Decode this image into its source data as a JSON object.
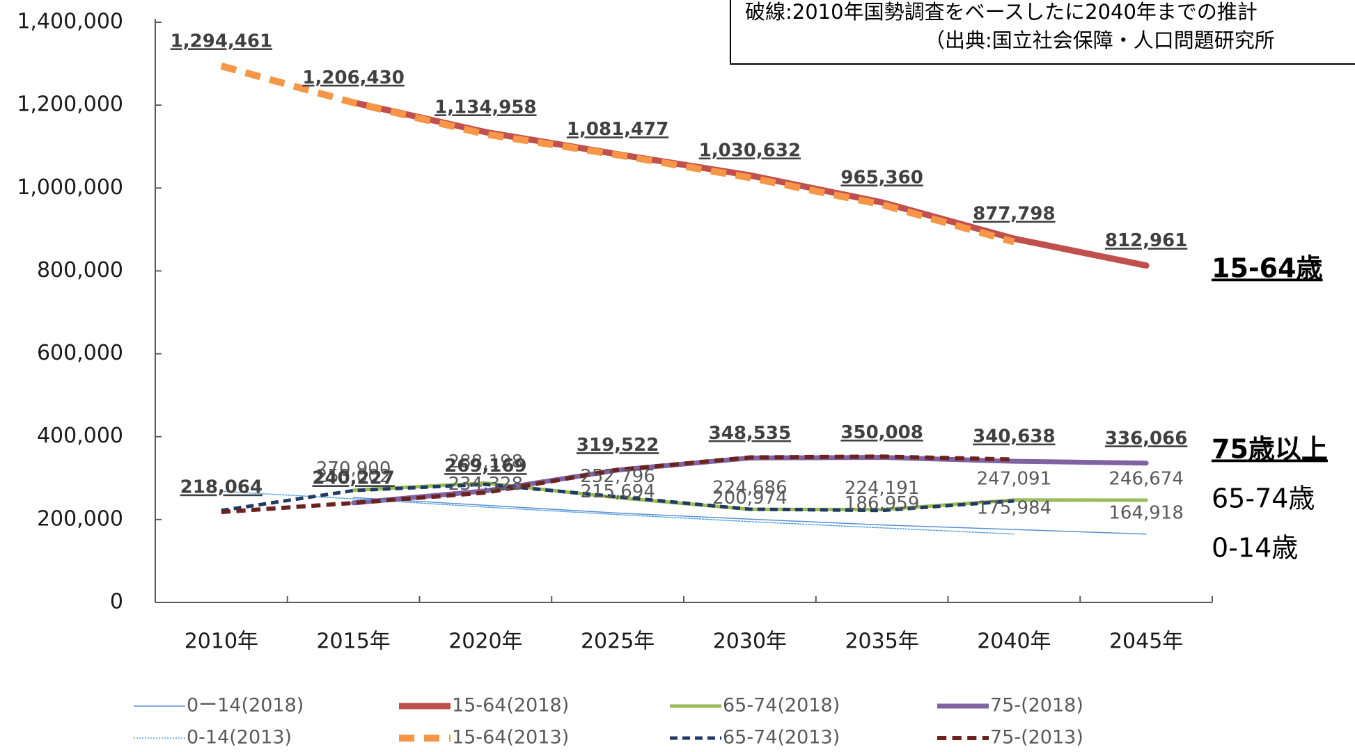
{
  "chart_data": {
    "type": "line",
    "annotation": [
      "破線:2010年国勢調査をベースしたに2040年までの推計",
      "（出典:国立社会保障・人口問題研究所"
    ],
    "side_labels": [
      "15-64歳",
      "75歳以上",
      "65-74歳",
      "0-14歳"
    ],
    "categories": [
      "2010年",
      "2015年",
      "2020年",
      "2025年",
      "2030年",
      "2035年",
      "2040年",
      "2045年"
    ],
    "ylim": [
      0,
      1400000
    ],
    "yticks": [
      0,
      {
        "value": 200000,
        "label": "200,000"
      },
      {
        "value": 400000,
        "label": "400,000"
      },
      {
        "value": 600000,
        "label": "600,000"
      },
      {
        "value": 800000,
        "label": "800,000"
      },
      {
        "value": 1000000,
        "label": "1,000,000"
      },
      {
        "value": 1200000,
        "label": "1,200,000"
      },
      {
        "value": 1400000,
        "label": "1,400,000"
      }
    ],
    "series": [
      {
        "name": "0ー14(2018)",
        "color": "#5b8fd0",
        "dash": "solid",
        "width": 1.5,
        "values": [
          null,
          253002,
          234328,
          215694,
          200974,
          186959,
          175984,
          164918
        ],
        "value_labels": [
          null,
          "253,002",
          "234,328",
          "215,694",
          "200,974",
          "186,959",
          "175,984",
          "164,918"
        ],
        "label_bold": false
      },
      {
        "name": "15-64(2018)",
        "color": "#c0504d",
        "dash": "solid",
        "width": 9,
        "values": [
          null,
          1206430,
          1134958,
          1081477,
          1030632,
          965360,
          877798,
          812961
        ],
        "value_labels": [
          null,
          "1,206,430",
          "1,134,958",
          "1,081,477",
          "1,030,632",
          "965,360",
          "877,798",
          "812,961"
        ],
        "label_bold": true
      },
      {
        "name": "65-74(2018)",
        "color": "#9bbb59",
        "dash": "solid",
        "width": 5,
        "values": [
          null,
          270900,
          288198,
          252796,
          224686,
          224191,
          247091,
          246674
        ],
        "value_labels": [
          null,
          "270,900",
          "288,198",
          "252,796",
          "224,686",
          "224,191",
          "247,091",
          "246,674"
        ],
        "label_bold": false
      },
      {
        "name": "75-(2018)",
        "color": "#8064a2",
        "dash": "solid",
        "width": 7,
        "values": [
          null,
          240227,
          269169,
          319522,
          348535,
          350008,
          340638,
          336066
        ],
        "value_labels": [
          null,
          "240,227",
          "269,169",
          "319,522",
          "348,535",
          "350,008",
          "340,638",
          "336,066"
        ],
        "label_bold": true
      },
      {
        "name": "0-14(2013)",
        "color": "#4f9fd8",
        "dash": "dotted",
        "width": 1.5,
        "values": [
          268000,
          250000,
          230000,
          212000,
          195000,
          180000,
          165000,
          null
        ]
      },
      {
        "name": "15-64(2013)",
        "color": "#f79646",
        "dash": "dashed",
        "width": 10,
        "values": [
          1294461,
          1206000,
          1130000,
          1080000,
          1025000,
          960000,
          870000,
          null
        ],
        "value_labels": [
          "1,294,461",
          null,
          null,
          null,
          null,
          null,
          null,
          null
        ],
        "label_bold": true
      },
      {
        "name": "65-74(2013)",
        "color": "#1f3b63",
        "dash": "dashed",
        "width": 5,
        "values": [
          222000,
          270000,
          285000,
          255000,
          225000,
          222000,
          245000,
          null
        ]
      },
      {
        "name": "75-(2013)",
        "color": "#6b2320",
        "dash": "dashed",
        "width": 6,
        "values": [
          218064,
          240000,
          265000,
          320000,
          350000,
          352000,
          345000,
          null
        ],
        "value_labels": [
          "218,064",
          null,
          null,
          null,
          null,
          null,
          null,
          null
        ],
        "label_bold": true
      }
    ]
  }
}
